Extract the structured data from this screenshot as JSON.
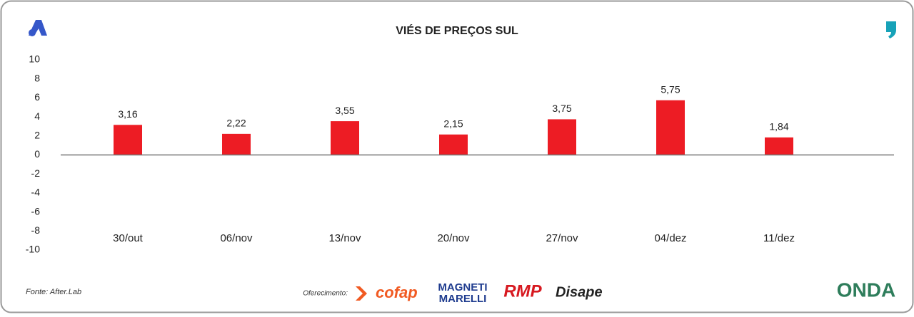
{
  "chart_data": {
    "type": "bar",
    "title": "VIÉS DE PREÇOS SUL",
    "categories": [
      "30/out",
      "06/nov",
      "13/nov",
      "20/nov",
      "27/nov",
      "04/dez",
      "11/dez"
    ],
    "values": [
      3.16,
      2.22,
      3.55,
      2.15,
      3.75,
      5.75,
      1.84
    ],
    "value_labels": [
      "3,16",
      "2,22",
      "3,55",
      "2,15",
      "3,75",
      "5,75",
      "1,84"
    ],
    "color": "#ed1c24",
    "ylim": [
      -10,
      10
    ],
    "yticks": [
      -10,
      -8,
      -6,
      -4,
      -2,
      0,
      2,
      4,
      6,
      8,
      10
    ],
    "grid": false
  },
  "footer": {
    "source": "Fonte: After.Lab",
    "sponsor_label": "Oferecimento:",
    "sponsors": [
      "cofap",
      "MAGNETI",
      "MARELLI",
      "RMP",
      "Disape"
    ],
    "brand": "ONDA"
  }
}
